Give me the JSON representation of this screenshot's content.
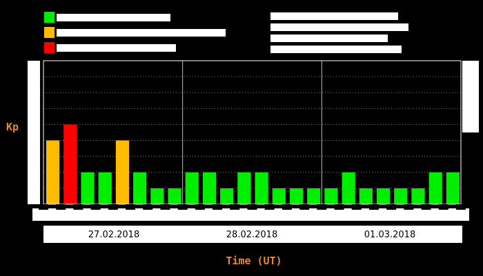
{
  "chart_data": {
    "type": "bar",
    "title": "",
    "xlabel": "Time (UT)",
    "ylabel": "Kp",
    "ylim": [
      0,
      9
    ],
    "grid": true,
    "legend": "top-left",
    "date_labels": [
      "27.02.2018",
      "28.02.2018",
      "01.03.2018"
    ],
    "values": [
      4,
      5,
      2,
      2,
      4,
      2,
      1,
      1,
      2,
      2,
      1,
      2,
      2,
      1,
      1,
      1,
      1,
      2,
      1,
      1,
      1,
      1,
      2,
      2
    ],
    "level_colors": {
      "quiet": "#00ee00",
      "active": "#ffbb00",
      "storm": "#ff0000"
    }
  }
}
